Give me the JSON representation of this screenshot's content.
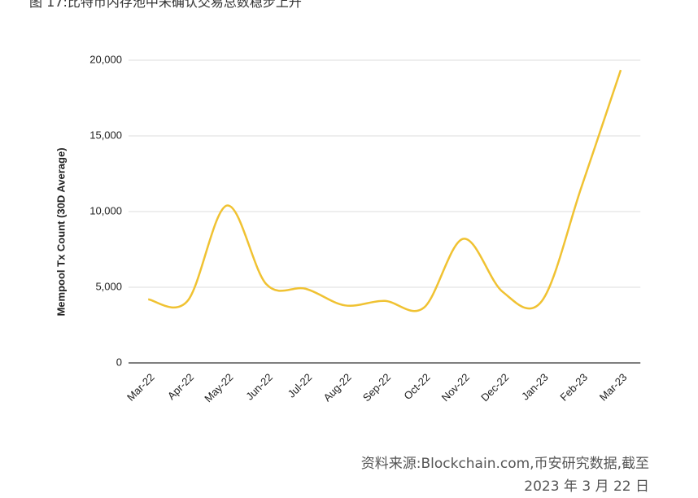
{
  "title": "图 17:比特币内存池中未确认交易总数稳步上升",
  "source": "资料来源:Blockchain.com,币安研究数据,截至 2023 年 3 月 22 日",
  "chart_data": {
    "type": "line",
    "y_label": "Mempool Tx Count (30D Average)",
    "categories": [
      "Mar-22",
      "Apr-22",
      "May-22",
      "Jun-22",
      "Jul-22",
      "Aug-22",
      "Sep-22",
      "Oct-22",
      "Nov-22",
      "Dec-22",
      "Jan-23",
      "Feb-23",
      "Mar-23"
    ],
    "series": [
      {
        "name": "Mempool Tx Count",
        "color": "#f0c232",
        "values": [
          4200,
          4100,
          10400,
          5200,
          4900,
          3800,
          4100,
          3650,
          8200,
          4700,
          4100,
          11600,
          19350
        ]
      }
    ],
    "ylim": [
      0,
      20000
    ],
    "yticks": [
      0,
      {
        "value": 5000,
        "label": "5,000"
      },
      {
        "value": 10000,
        "label": "10,000"
      },
      {
        "value": 15000,
        "label": "15,000"
      },
      {
        "value": 20000,
        "label": "20,000"
      }
    ],
    "grid": true,
    "smooth": true
  }
}
